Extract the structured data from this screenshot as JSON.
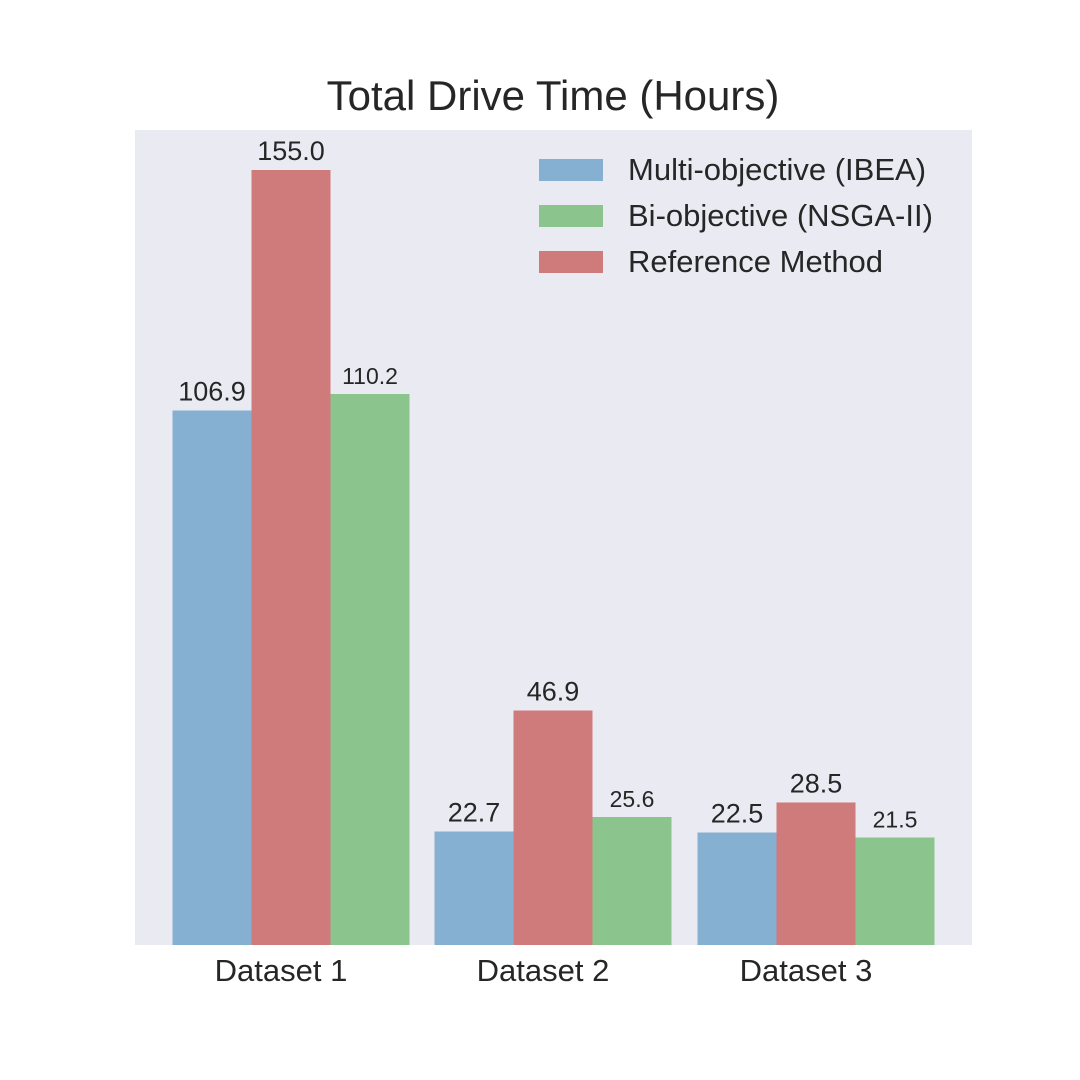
{
  "chart_data": {
    "type": "bar",
    "title": "Total Drive Time (Hours)",
    "xlabel": "",
    "ylabel": "",
    "categories": [
      "Dataset 1",
      "Dataset 2",
      "Dataset 3"
    ],
    "series": [
      {
        "name": "Multi-objective (IBEA)",
        "values": [
          106.9,
          22.7,
          22.5
        ],
        "color": "#86b0d2"
      },
      {
        "name": "Reference Method",
        "values": [
          155.0,
          46.9,
          28.5
        ],
        "color": "#cf7b7c"
      },
      {
        "name": "Bi-objective (NSGA-II)",
        "values": [
          110.2,
          25.6,
          21.5
        ],
        "color": "#8bc58d"
      }
    ],
    "data_labels": [
      [
        "106.9",
        "22.7",
        "22.5"
      ],
      [
        "155.0",
        "46.9",
        "28.5"
      ],
      [
        "110.2",
        "25.6",
        "21.5"
      ]
    ],
    "legend": {
      "placement": "top-right",
      "order": [
        "Multi-objective (IBEA)",
        "Bi-objective (NSGA-II)",
        "Reference Method"
      ]
    },
    "ylim": [
      0,
      163
    ],
    "grid": false,
    "y_axis_visible": false,
    "background_color": "#eaeaf2"
  }
}
